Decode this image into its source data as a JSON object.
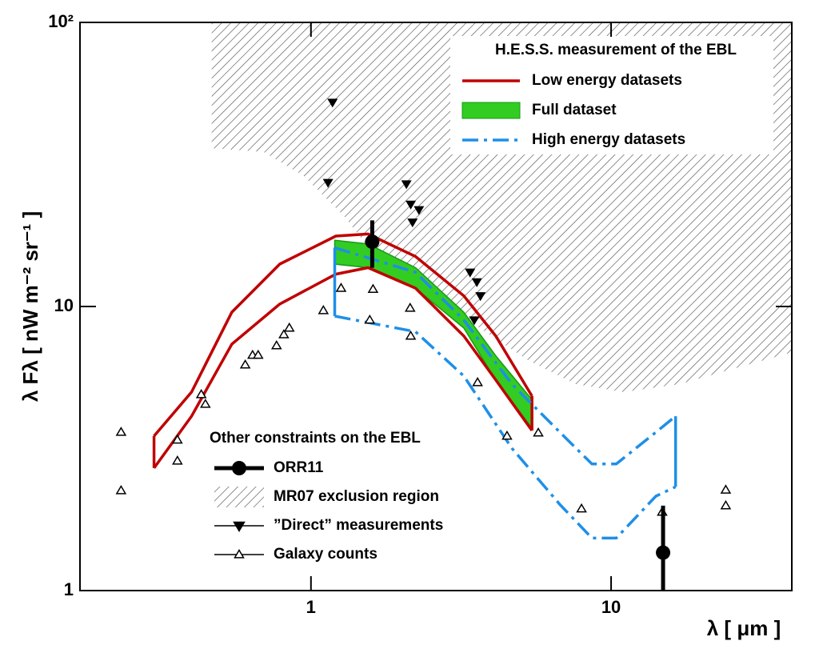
{
  "chart_data": {
    "type": "line",
    "xscale": "log",
    "yscale": "log",
    "xlabel": "λ  [ μm ]",
    "ylabel": "λ Fλ  [ nW m⁻² sr⁻¹ ]",
    "xlim": [
      0.17,
      40
    ],
    "ylim": [
      1,
      100
    ],
    "xticks": [
      1,
      10
    ],
    "yticks": [
      1,
      10,
      {
        "value": 100,
        "label": "10²"
      }
    ],
    "legends": [
      {
        "corner": "upper right",
        "title": "H.E.S.S. measurement of the EBL"
      },
      {
        "corner": "lower left",
        "title": "Other constraints on the EBL"
      }
    ],
    "series": [
      {
        "name": "Low energy datasets",
        "style": "band-outline",
        "color": "#c00000",
        "legend": "upper right",
        "x": [
          0.3,
          0.4,
          0.545,
          0.787,
          1.21,
          1.55,
          2.23,
          3.23,
          4.13,
          5.45
        ],
        "upper": [
          3.5,
          5.0,
          9.55,
          14.1,
          17.7,
          18.0,
          15.0,
          10.9,
          7.87,
          4.84
        ],
        "lower": [
          2.7,
          4.11,
          7.37,
          10.2,
          13.0,
          13.7,
          11.6,
          7.87,
          5.51,
          3.66
        ]
      },
      {
        "name": "Full dataset",
        "style": "band",
        "color": "#33cc22",
        "legend": "upper right",
        "x": [
          1.2,
          1.55,
          2.23,
          3.23,
          4.13,
          5.45
        ],
        "upper": [
          17.1,
          16.6,
          13.7,
          9.55,
          6.7,
          4.7
        ],
        "lower": [
          14.1,
          13.7,
          11.6,
          8.4,
          5.5,
          3.73
        ]
      },
      {
        "name": "High energy datasets",
        "style": "dash-dot-band",
        "color": "#1e8fe8",
        "legend": "upper right",
        "x": [
          1.2,
          2.23,
          3.23,
          4.67,
          6.75,
          8.63,
          10.4,
          14.1,
          16.4
        ],
        "upper": [
          16.1,
          13.2,
          8.96,
          5.33,
          3.61,
          2.79,
          2.79,
          3.61,
          4.11
        ],
        "lower": [
          9.25,
          8.15,
          5.69,
          3.17,
          2.01,
          1.53,
          1.53,
          2.15,
          2.32
        ]
      },
      {
        "name": "ORR11",
        "style": "points-error",
        "color": "#000000",
        "legend": "lower left",
        "x": [
          1.6,
          14.9
        ],
        "values": [
          16.9,
          1.36
        ],
        "low": [
          13.7,
          1
        ],
        "high": [
          20.1,
          1.99
        ]
      },
      {
        "name": "MR07 exclusion region",
        "style": "hatch",
        "color": "#555555",
        "legend": "lower left",
        "x": [
          0.467,
          0.467,
          0.696,
          0.946,
          1.29,
          1.64,
          2.53,
          3.65,
          5.27,
          7.63,
          11.0,
          16.9,
          26.0,
          40
        ],
        "values": [
          100,
          36.1,
          35,
          28.8,
          20.8,
          15.0,
          10.9,
          8.4,
          6.48,
          5.33,
          5.0,
          5.33,
          6.07,
          6.9
        ]
      },
      {
        "name": "”Direct” measurements",
        "style": "down-triangle",
        "color": "#000000",
        "legend": "lower left",
        "x": [
          1.18,
          1.14,
          2.08,
          2.15,
          2.18,
          2.29,
          3.39,
          3.57,
          3.67,
          3.5
        ],
        "values": [
          52.3,
          27.3,
          27,
          22.9,
          19.8,
          21.9,
          13.2,
          12.2,
          10.9,
          8.96
        ]
      },
      {
        "name": "Galaxy counts",
        "style": "up-triangle",
        "color": "#000000",
        "legend": "lower left",
        "x": [
          0.233,
          0.233,
          0.359,
          0.359,
          0.431,
          0.445,
          0.604,
          0.639,
          0.667,
          0.768,
          0.812,
          0.847,
          1.1,
          1.26,
          1.61,
          1.57,
          2.14,
          2.15,
          3.59,
          4.5,
          5.72,
          7.97,
          14.8,
          24.1,
          24.1
        ],
        "values": [
          3.61,
          2.25,
          3.39,
          2.86,
          4.9,
          4.53,
          6.23,
          6.74,
          6.74,
          7.28,
          7.96,
          8.4,
          9.68,
          11.6,
          11.5,
          8.96,
          9.87,
          7.87,
          5.4,
          3.5,
          3.59,
          1.94,
          1.89,
          2.26,
          1.99
        ]
      }
    ]
  }
}
